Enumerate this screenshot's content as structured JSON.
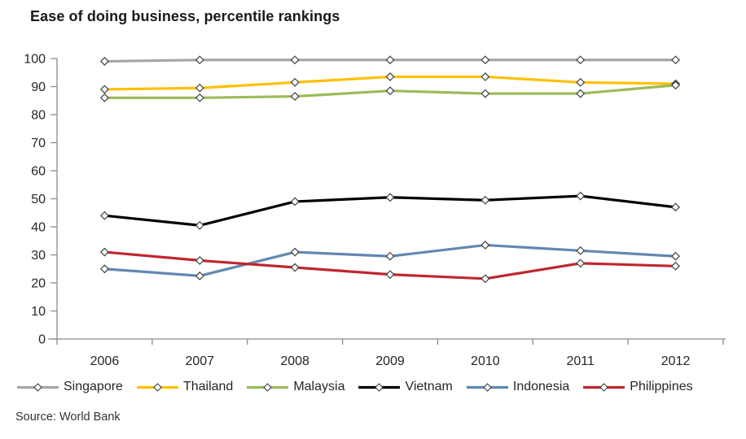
{
  "chart_data": {
    "type": "line",
    "title": "Ease of doing business, percentile rankings",
    "source": "Source: World Bank",
    "categories": [
      "2006",
      "2007",
      "2008",
      "2009",
      "2010",
      "2011",
      "2012"
    ],
    "series": [
      {
        "name": "Singapore",
        "color": "#A6A6A6",
        "values": [
          99,
          99.5,
          99.5,
          99.5,
          99.5,
          99.5,
          99.5
        ]
      },
      {
        "name": "Thailand",
        "color": "#FFC000",
        "values": [
          89,
          89.5,
          91.5,
          93.5,
          93.5,
          91.5,
          91
        ]
      },
      {
        "name": "Malaysia",
        "color": "#9BBB59",
        "values": [
          86,
          86,
          86.5,
          88.5,
          87.5,
          87.5,
          90.5
        ]
      },
      {
        "name": "Vietnam",
        "color": "#000000",
        "values": [
          44,
          40.5,
          49,
          50.5,
          49.5,
          51,
          47
        ]
      },
      {
        "name": "Indonesia",
        "color": "#6288B2",
        "values": [
          25,
          22.5,
          31,
          29.5,
          33.5,
          31.5,
          29.5
        ]
      },
      {
        "name": "Philippines",
        "color": "#C0272D",
        "values": [
          31,
          28,
          25.5,
          23,
          21.5,
          27,
          26
        ]
      }
    ],
    "xlabel": "",
    "ylabel": "",
    "ylim": [
      0,
      100
    ],
    "ytick_step": 10,
    "grid": false,
    "legend_position": "bottom",
    "marker": "diamond",
    "marker_fill": "#ffffff",
    "marker_stroke": "#404040",
    "axis_color": "#8c8c8c",
    "tick_label_color": "#262626"
  }
}
